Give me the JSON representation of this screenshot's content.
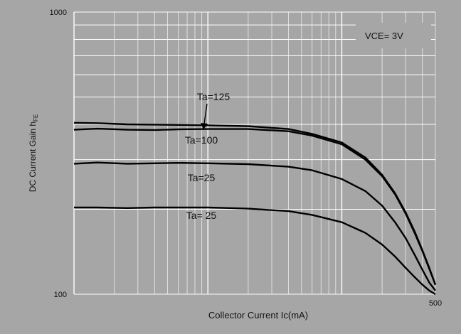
{
  "chart_data": {
    "type": "line",
    "title": "",
    "xlabel": "Collector Current  Ic(mA)",
    "ylabel_main": "DC Current Gain  h",
    "ylabel_sub": "FE",
    "xscale": "log",
    "yscale": "log",
    "xlim": [
      1,
      500
    ],
    "ylim": [
      100,
      1000
    ],
    "grid": true,
    "colors": {
      "plot_bg": "#a6a6a6",
      "frame_bg": "#a6a6a6",
      "grid_major": "#ffffff",
      "grid_minor": "#e6e6e6",
      "line": "#000000"
    },
    "ytick_labels": [
      "1000",
      "100"
    ],
    "ytick_values": [
      1000,
      100
    ],
    "xtick_labels": [
      "500"
    ],
    "xtick_values": [
      500
    ],
    "annotation": "VCE=  3V",
    "series": [
      {
        "name": "Ta=125",
        "x": [
          1,
          1.5,
          2.5,
          4,
          6,
          10,
          20,
          40,
          60,
          100,
          150,
          200,
          250,
          300,
          350,
          400,
          450,
          500
        ],
        "y": [
          405,
          404,
          400,
          399,
          398,
          397,
          394,
          385,
          370,
          345,
          305,
          265,
          228,
          195,
          167,
          143,
          124,
          108
        ]
      },
      {
        "name": "Ta=100",
        "x": [
          1,
          1.5,
          2.5,
          4,
          6,
          10,
          20,
          40,
          60,
          100,
          150,
          200,
          250,
          300,
          350,
          400,
          450,
          500
        ],
        "y": [
          383,
          386,
          383,
          382,
          384,
          385,
          385,
          378,
          365,
          340,
          300,
          262,
          226,
          193,
          165,
          142,
          123,
          108
        ]
      },
      {
        "name": "Ta=25",
        "x": [
          1,
          1.5,
          2.5,
          4,
          6,
          10,
          20,
          40,
          60,
          100,
          150,
          200,
          250,
          300,
          350,
          400,
          450,
          500
        ],
        "y": [
          290,
          293,
          290,
          291,
          292,
          291,
          289,
          283,
          275,
          256,
          232,
          206,
          180,
          158,
          138,
          122,
          110,
          103
        ]
      },
      {
        "name": "Ta=  25",
        "x": [
          1,
          1.5,
          2.5,
          4,
          6,
          10,
          20,
          40,
          60,
          100,
          150,
          200,
          250,
          300,
          350,
          400,
          450,
          500
        ],
        "y": [
          203,
          203,
          202,
          203,
          203,
          203,
          201,
          197,
          191,
          180,
          165,
          150,
          136,
          124,
          115,
          108,
          103,
          100
        ]
      }
    ]
  }
}
